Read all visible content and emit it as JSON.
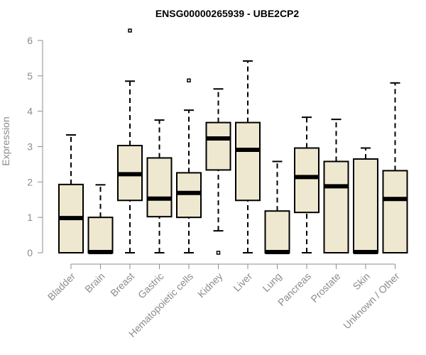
{
  "chart_data": {
    "type": "boxplot",
    "title": "ENSG00000265939 - UBE2CP2",
    "xlabel": "",
    "ylabel": "Expression",
    "ylim": [
      0,
      6
    ],
    "yticks": [
      0,
      1,
      2,
      3,
      4,
      5,
      6
    ],
    "box_fill": "#efe8d0",
    "categories": [
      "Bladder",
      "Brain",
      "Breast",
      "Gastric",
      "Hematopoietic cells",
      "Kidney",
      "Liver",
      "Lung",
      "Pancreas",
      "Prostate",
      "Skin",
      "Unknown / Other"
    ],
    "series": [
      {
        "name": "Bladder",
        "whisker_low": 0,
        "q1": 0,
        "median": 0.98,
        "q3": 1.93,
        "whisker_high": 3.33,
        "outliers": []
      },
      {
        "name": "Brain",
        "whisker_low": 0,
        "q1": 0,
        "median": 0.02,
        "q3": 1.0,
        "whisker_high": 1.92,
        "outliers": []
      },
      {
        "name": "Breast",
        "whisker_low": 0,
        "q1": 1.48,
        "median": 2.22,
        "q3": 3.03,
        "whisker_high": 4.85,
        "outliers": [
          6.28
        ]
      },
      {
        "name": "Gastric",
        "whisker_low": 0,
        "q1": 1.02,
        "median": 1.53,
        "q3": 2.68,
        "whisker_high": 3.75,
        "outliers": []
      },
      {
        "name": "Hematopoietic cells",
        "whisker_low": 0,
        "q1": 1.0,
        "median": 1.69,
        "q3": 2.26,
        "whisker_high": 4.03,
        "outliers": [
          4.87
        ]
      },
      {
        "name": "Kidney",
        "whisker_low": 0.62,
        "q1": 2.34,
        "median": 3.23,
        "q3": 3.68,
        "whisker_high": 4.63,
        "outliers": [
          0.0
        ]
      },
      {
        "name": "Liver",
        "whisker_low": 0,
        "q1": 1.48,
        "median": 2.91,
        "q3": 3.68,
        "whisker_high": 5.42,
        "outliers": []
      },
      {
        "name": "Lung",
        "whisker_low": 0,
        "q1": 0,
        "median": 0.02,
        "q3": 1.18,
        "whisker_high": 2.58,
        "outliers": []
      },
      {
        "name": "Pancreas",
        "whisker_low": 0,
        "q1": 1.14,
        "median": 2.14,
        "q3": 2.96,
        "whisker_high": 3.83,
        "outliers": []
      },
      {
        "name": "Prostate",
        "whisker_low": 0,
        "q1": 0,
        "median": 1.88,
        "q3": 2.58,
        "whisker_high": 3.77,
        "outliers": []
      },
      {
        "name": "Skin",
        "whisker_low": 0,
        "q1": 0,
        "median": 0.02,
        "q3": 2.65,
        "whisker_high": 2.96,
        "outliers": []
      },
      {
        "name": "Unknown / Other",
        "whisker_low": 0,
        "q1": 0,
        "median": 1.52,
        "q3": 2.32,
        "whisker_high": 4.8,
        "outliers": []
      }
    ]
  }
}
